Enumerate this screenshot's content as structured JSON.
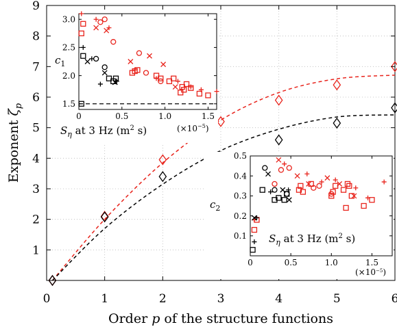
{
  "chart_data": [
    {
      "type": "scatter",
      "xlabel_prefix": "Order ",
      "xlabel_var": "p",
      "xlabel_suffix": " of the structure functions",
      "ylabel_prefix": "Exponent ",
      "ylabel_var": "ζ",
      "ylabel_sub": "p",
      "xlim": [
        0,
        6
      ],
      "ylim": [
        0,
        9
      ],
      "xticks": [
        "0",
        "1",
        "2",
        "3",
        "4",
        "5",
        "6"
      ],
      "yticks": [
        "1",
        "2",
        "3",
        "4",
        "5",
        "6",
        "7",
        "8",
        "9"
      ],
      "grid": true,
      "series": [
        {
          "color": "#e8231b",
          "marker": "diamond",
          "x": [
            0.1,
            1,
            2,
            3,
            4,
            5,
            6
          ],
          "y": [
            0.0,
            2.1,
            3.95,
            5.2,
            5.9,
            6.4,
            7.0
          ],
          "fit": [
            [
              0.1,
              0.0
            ],
            [
              1,
              2.0
            ],
            [
              2,
              3.85
            ],
            [
              3,
              5.25
            ],
            [
              4,
              6.15
            ],
            [
              5,
              6.6
            ],
            [
              6,
              6.72
            ]
          ]
        },
        {
          "color": "#000000",
          "marker": "diamond",
          "x": [
            0.1,
            1,
            2,
            3,
            4,
            5,
            6
          ],
          "y": [
            0.0,
            2.08,
            3.4,
            4.05,
            4.6,
            5.15,
            5.65
          ],
          "fit": [
            [
              0.1,
              0.0
            ],
            [
              1,
              1.7
            ],
            [
              2,
              3.15
            ],
            [
              3,
              4.25
            ],
            [
              4,
              4.95
            ],
            [
              5,
              5.35
            ],
            [
              6,
              5.42
            ]
          ]
        }
      ]
    },
    {
      "type": "scatter",
      "ylabel": "c",
      "ylabel_sub": "1",
      "xlabel_var": "S",
      "xlabel_sub": "η",
      "xlabel_text": " at 3 Hz (m",
      "xlabel_sup": "2",
      "xlabel_end": " s)",
      "x_multiplier": "(×10",
      "x_multiplier_exp": "−5",
      "x_multiplier_end": ")",
      "xlim": [
        0,
        1.6
      ],
      "ylim": [
        1.4,
        3.1
      ],
      "xticks": [
        "0",
        "0.5",
        "1.0",
        "1.5"
      ],
      "yticks": [
        "1.5",
        "2.0",
        "2.5",
        "3.0"
      ],
      "reference_line": 1.5,
      "series": [
        {
          "color": "#e8231b",
          "marker": "square",
          "x": [
            0.03,
            0.05,
            0.62,
            0.65,
            0.68,
            0.9,
            0.95,
            1.05,
            1.1,
            1.2,
            1.22,
            1.25,
            1.3,
            1.4,
            1.5,
            1.18
          ],
          "y": [
            2.75,
            2.92,
            2.05,
            2.08,
            2.1,
            2.0,
            1.95,
            1.9,
            1.95,
            1.8,
            1.75,
            1.85,
            1.78,
            1.68,
            1.65,
            1.7
          ]
        },
        {
          "color": "#e8231b",
          "marker": "circle",
          "x": [
            0.25,
            0.3,
            0.4,
            0.7,
            0.78,
            0.95
          ],
          "y": [
            2.95,
            3.0,
            2.6,
            2.4,
            2.05,
            1.9
          ]
        },
        {
          "color": "#e8231b",
          "marker": "x",
          "x": [
            0.2,
            0.32,
            0.6,
            0.82,
            0.98,
            1.12
          ],
          "y": [
            2.85,
            2.8,
            2.25,
            2.35,
            2.2,
            1.8
          ]
        },
        {
          "color": "#e8231b",
          "marker": "plus",
          "x": [
            0.03,
            0.2,
            0.35,
            0.65,
            0.9,
            1.15,
            1.3,
            1.42,
            1.6
          ],
          "y": [
            3.1,
            3.0,
            2.85,
            2.1,
            1.95,
            1.9,
            1.8,
            1.75,
            1.72
          ]
        },
        {
          "color": "#000000",
          "marker": "square",
          "x": [
            0.03,
            0.05,
            0.35,
            0.4,
            0.43
          ],
          "y": [
            1.5,
            2.35,
            1.95,
            1.9,
            1.95
          ]
        },
        {
          "color": "#000000",
          "marker": "circle",
          "x": [
            0.2,
            0.3
          ],
          "y": [
            2.3,
            2.15
          ]
        },
        {
          "color": "#000000",
          "marker": "x",
          "x": [
            0.1,
            0.3,
            0.42
          ],
          "y": [
            2.25,
            2.05,
            1.88
          ]
        },
        {
          "color": "#000000",
          "marker": "plus",
          "x": [
            0.05,
            0.15,
            0.25,
            0.44
          ],
          "y": [
            2.5,
            2.3,
            1.85,
            1.9
          ]
        }
      ]
    },
    {
      "type": "scatter",
      "ylabel": "c",
      "ylabel_sub": "2",
      "xlabel_var": "S",
      "xlabel_sub": "η",
      "xlabel_text": " at 3 Hz (m",
      "xlabel_sup": "2",
      "xlabel_end": " s)",
      "x_multiplier": "(×10",
      "x_multiplier_exp": "−5",
      "x_multiplier_end": ")",
      "xlim": [
        0,
        1.75
      ],
      "ylim": [
        0,
        0.5
      ],
      "xticks": [
        "0",
        "0.5",
        "1.0",
        "1.5"
      ],
      "yticks": [
        "0.1",
        "0.2",
        "0.3",
        "0.4",
        "0.5"
      ],
      "series": [
        {
          "color": "#e8231b",
          "marker": "square",
          "x": [
            0.05,
            0.08,
            0.6,
            0.62,
            0.65,
            0.75,
            1.0,
            1.02,
            1.05,
            1.15,
            1.2,
            1.22,
            1.25,
            1.4,
            1.5,
            1.18
          ],
          "y": [
            0.13,
            0.18,
            0.33,
            0.35,
            0.32,
            0.36,
            0.3,
            0.32,
            0.35,
            0.33,
            0.36,
            0.35,
            0.3,
            0.25,
            0.28,
            0.24
          ]
        },
        {
          "color": "#e8231b",
          "marker": "circle",
          "x": [
            0.3,
            0.38,
            0.48,
            0.78,
            0.85,
            1.0
          ],
          "y": [
            0.36,
            0.43,
            0.44,
            0.34,
            0.35,
            0.31
          ]
        },
        {
          "color": "#e8231b",
          "marker": "x",
          "x": [
            0.35,
            0.58,
            0.72,
            0.95,
            1.1,
            1.28
          ],
          "y": [
            0.48,
            0.4,
            0.36,
            0.39,
            0.36,
            0.3
          ]
        },
        {
          "color": "#e8231b",
          "marker": "plus",
          "x": [
            0.05,
            0.42,
            0.7,
            0.88,
            1.05,
            1.3,
            1.45,
            1.65
          ],
          "y": [
            0.18,
            0.46,
            0.41,
            0.37,
            0.38,
            0.34,
            0.29,
            0.37
          ]
        },
        {
          "color": "#000000",
          "marker": "square",
          "x": [
            0.03,
            0.15,
            0.3,
            0.35,
            0.42,
            0.45
          ],
          "y": [
            0.03,
            0.33,
            0.28,
            0.29,
            0.28,
            0.31
          ]
        },
        {
          "color": "#000000",
          "marker": "circle",
          "x": [
            0.18,
            0.3,
            0.45
          ],
          "y": [
            0.44,
            0.33,
            0.31
          ]
        },
        {
          "color": "#000000",
          "marker": "x",
          "x": [
            0.05,
            0.22,
            0.4,
            0.48
          ],
          "y": [
            0.19,
            0.41,
            0.33,
            0.28
          ]
        },
        {
          "color": "#000000",
          "marker": "plus",
          "x": [
            0.05,
            0.08,
            0.25,
            0.47
          ],
          "y": [
            0.07,
            0.19,
            0.32,
            0.33
          ]
        }
      ]
    }
  ]
}
